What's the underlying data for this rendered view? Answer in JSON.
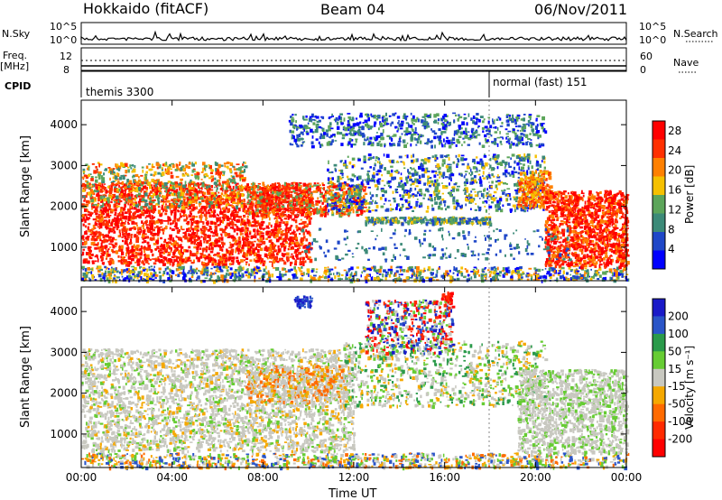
{
  "header": {
    "station": "Hokkaido (fitACF)",
    "beam": "Beam 04",
    "date": "06/Nov/2011"
  },
  "summary_panel": {
    "nsky_label": "N.Sky",
    "nsearch_label": "N.Search",
    "freq_label": "Freq.",
    "freq_unit": "[MHz]",
    "nave_label": "Nave",
    "cpid_label": "CPID",
    "nsky_ticks": [
      "10^5",
      "10^0"
    ],
    "nsearch_ticks": [
      "10^5",
      "10^0"
    ],
    "freq_ticks": [
      "12",
      "8"
    ],
    "nave_ticks": [
      "60",
      "0"
    ],
    "cpid_segments": [
      {
        "label": "themis 3300",
        "start": "00:00",
        "end": "18:00"
      },
      {
        "label": "normal (fast) 151",
        "start": "18:00",
        "end": "00:00"
      }
    ]
  },
  "colors": {
    "power_scale": [
      "#0000ff",
      "#1f47c8",
      "#3c8a78",
      "#5ca55a",
      "#f5c000",
      "#ff8000",
      "#ff3000",
      "#ff0000"
    ],
    "velocity_scale": [
      "#1a1ac8",
      "#2a55c8",
      "#2a9a4a",
      "#66cc33",
      "#c8c8c0",
      "#f5a800",
      "#ff6a00",
      "#ff2a00",
      "#ff0000"
    ]
  },
  "chart_data": [
    {
      "type": "heatmap",
      "name": "power",
      "ylabel": "Slant Range [km]",
      "xlabel": "Time UT",
      "x_ticks": [
        "00:00",
        "04:00",
        "08:00",
        "12:00",
        "16:00",
        "20:00",
        "00:00"
      ],
      "y_ticks": [
        1000,
        2000,
        3000,
        4000
      ],
      "ylim": [
        180,
        4600
      ],
      "colorbar": {
        "label": "Power [dB]",
        "ticks": [
          4,
          8,
          12,
          16,
          20,
          24,
          28
        ],
        "range": [
          0,
          30
        ]
      }
    },
    {
      "type": "heatmap",
      "name": "velocity",
      "ylabel": "Slant Range [km]",
      "xlabel": "Time UT",
      "x_ticks": [
        "00:00",
        "04:00",
        "08:00",
        "12:00",
        "16:00",
        "20:00",
        "00:00"
      ],
      "y_ticks": [
        1000,
        2000,
        3000,
        4000
      ],
      "ylim": [
        180,
        4600
      ],
      "colorbar": {
        "label": "Velocity [m s⁻¹]",
        "ticks": [
          200,
          100,
          50,
          15,
          -15,
          -50,
          -100,
          -200
        ]
      }
    }
  ],
  "footer": {
    "xlabel": "Time UT"
  }
}
